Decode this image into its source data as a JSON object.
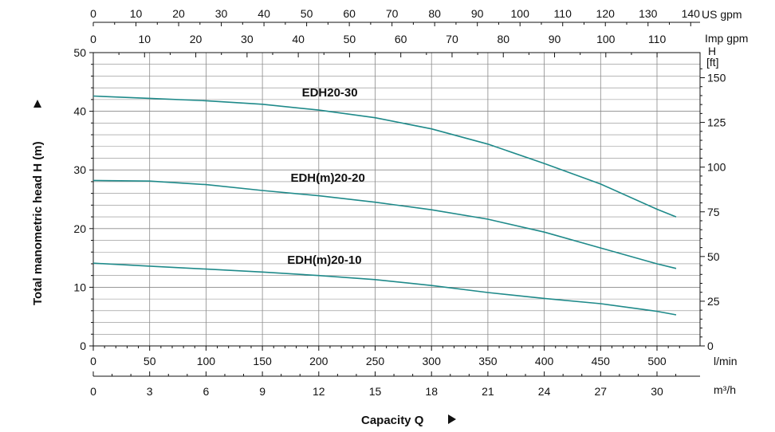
{
  "chart_data": {
    "type": "line",
    "title": "",
    "xlabel": "Capacity Q",
    "ylabel": "Total manometric head H (m)",
    "xlim": [
      0,
      520
    ],
    "ylim": [
      0,
      50
    ],
    "grid": true,
    "axes": {
      "x_lmin": {
        "unit": "l/min",
        "ticks": [
          "0",
          "50",
          "100",
          "150",
          "200",
          "250",
          "300",
          "350",
          "400",
          "450",
          "500"
        ]
      },
      "x_m3h": {
        "unit": "m³/h",
        "ticks": [
          "0",
          "3",
          "6",
          "9",
          "12",
          "15",
          "18",
          "21",
          "24",
          "27",
          "30"
        ]
      },
      "x_usgpm": {
        "unit": "US gpm",
        "ticks": [
          "0",
          "10",
          "20",
          "30",
          "40",
          "50",
          "60",
          "70",
          "80",
          "90",
          "100",
          "110",
          "120",
          "130",
          "140"
        ]
      },
      "x_impgpm": {
        "unit": "Imp gpm",
        "ticks": [
          "0",
          "10",
          "20",
          "30",
          "40",
          "50",
          "60",
          "70",
          "80",
          "90",
          "100",
          "110"
        ]
      },
      "y_m": {
        "ticks": [
          "0",
          "10",
          "20",
          "30",
          "40",
          "50"
        ]
      },
      "y_ft": {
        "unit_top": "H",
        "unit_bottom": "[ft]",
        "ticks": [
          "0",
          "25",
          "50",
          "75",
          "100",
          "125",
          "150"
        ]
      }
    },
    "series": [
      {
        "name": "EDH20-30",
        "x": [
          0,
          50,
          100,
          150,
          200,
          250,
          300,
          350,
          400,
          450,
          500,
          517
        ],
        "y": [
          42.6,
          42.2,
          41.8,
          41.2,
          40.2,
          38.9,
          37.0,
          34.4,
          31.1,
          27.6,
          23.3,
          22.0
        ]
      },
      {
        "name": "EDH(m)20-20",
        "x": [
          0,
          50,
          100,
          150,
          200,
          250,
          300,
          350,
          400,
          450,
          500,
          517
        ],
        "y": [
          28.2,
          28.1,
          27.5,
          26.5,
          25.6,
          24.5,
          23.2,
          21.6,
          19.4,
          16.7,
          14.0,
          13.2
        ]
      },
      {
        "name": "EDH(m)20-10",
        "x": [
          0,
          50,
          100,
          150,
          200,
          250,
          300,
          350,
          400,
          450,
          500,
          517
        ],
        "y": [
          14.1,
          13.6,
          13.1,
          12.6,
          12.0,
          11.3,
          10.3,
          9.1,
          8.1,
          7.2,
          5.9,
          5.3
        ]
      }
    ],
    "annotations": [
      {
        "text": "EDH20-30",
        "x": 185,
        "y": 42.5
      },
      {
        "text": "EDH(m)20-20",
        "x": 175,
        "y": 28.0
      },
      {
        "text": "EDH(m)20-10",
        "x": 172,
        "y": 14.0
      }
    ],
    "colors": {
      "curve": "#1f8a8a",
      "grid": "#8a8a8a",
      "axis": "#111111"
    }
  }
}
